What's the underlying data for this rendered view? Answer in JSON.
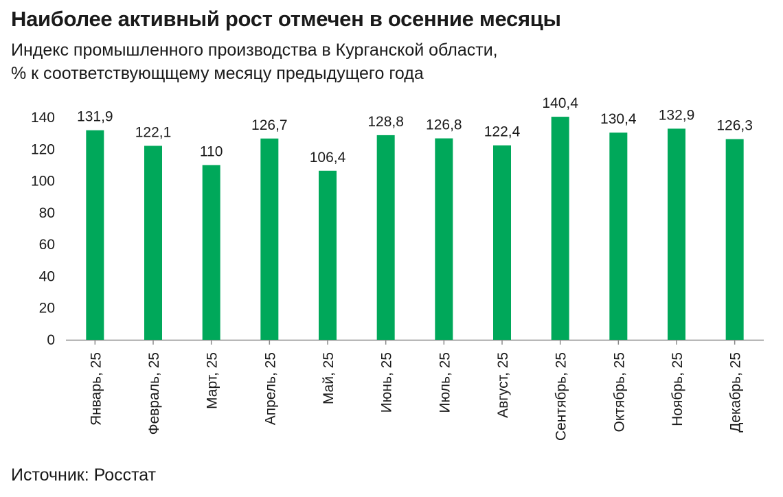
{
  "header": {
    "title": "Наиболее активный рост отмечен в осенние месяцы",
    "subtitle_line1": "Индекс промышленного производства в Курганской области,",
    "subtitle_line2": "% к соответствующщему месяцу предыдущего года"
  },
  "footer": {
    "source": "Источник: Росстат"
  },
  "chart_data": {
    "type": "bar",
    "categories": [
      "Январь, 25",
      "Февраль, 25",
      "Март, 25",
      "Апрель, 25",
      "Май, 25",
      "Июнь, 25",
      "Июль, 25",
      "Август, 25",
      "Сентябрь, 25",
      "Октябрь, 25",
      "Ноябрь, 25",
      "Декабрь, 25"
    ],
    "values": [
      131.9,
      122.1,
      110,
      126.7,
      106.4,
      128.8,
      126.8,
      122.4,
      140.4,
      130.4,
      132.9,
      126.3
    ],
    "value_labels": [
      "131,9",
      "122,1",
      "110",
      "126,7",
      "106,4",
      "128,8",
      "126,8",
      "122,4",
      "140,4",
      "130,4",
      "132,9",
      "126,3"
    ],
    "ylim": [
      0,
      140
    ],
    "yticks": [
      0,
      20,
      40,
      60,
      80,
      100,
      120,
      140
    ],
    "grid": false,
    "bar_color": "#00a85a"
  }
}
